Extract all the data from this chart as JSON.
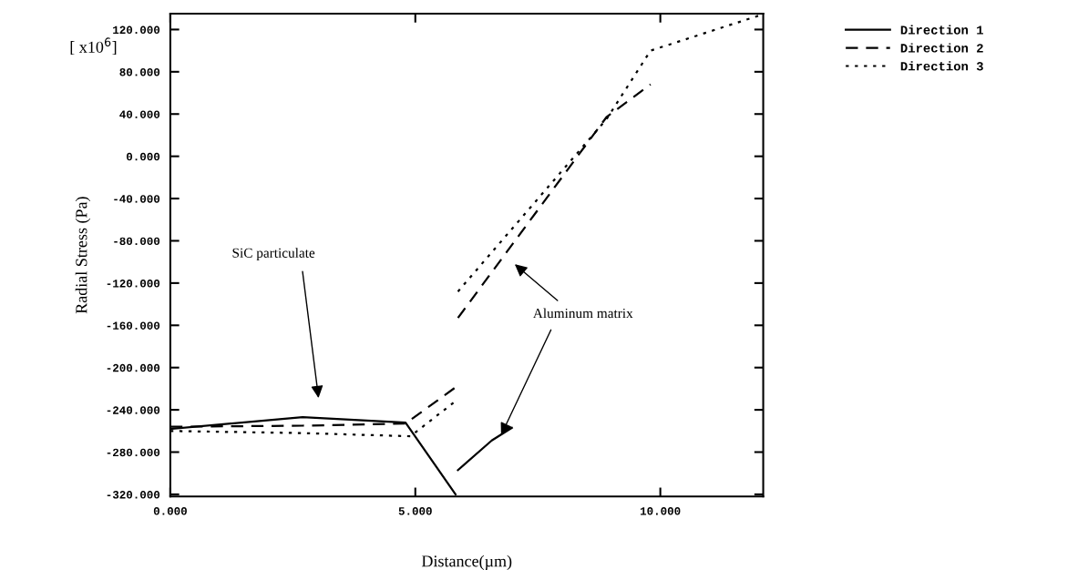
{
  "chart_data": {
    "type": "line",
    "xlabel": "Distance(µm)",
    "ylabel": "Radial Stress (Pa)",
    "xlim": [
      0,
      12.1
    ],
    "ylim": [
      -322,
      135
    ],
    "xticks": [
      {
        "value": 0,
        "label": "0.000"
      },
      {
        "value": 5,
        "label": "5.000"
      },
      {
        "value": 10,
        "label": "10.000"
      }
    ],
    "yticks": [
      {
        "value": 120,
        "label": "120.000"
      },
      {
        "value": 80,
        "label": "80.000"
      },
      {
        "value": 40,
        "label": "40.000"
      },
      {
        "value": 0,
        "label": "0.000"
      },
      {
        "value": -40,
        "label": "-40.000"
      },
      {
        "value": -80,
        "label": "-80.000"
      },
      {
        "value": -120,
        "label": "-120.000"
      },
      {
        "value": -160,
        "label": "-160.000"
      },
      {
        "value": -200,
        "label": "-200.000"
      },
      {
        "value": -240,
        "label": "-240.000"
      },
      {
        "value": -280,
        "label": "-280.000"
      },
      {
        "value": -320,
        "label": "-320.000"
      }
    ],
    "grid": false,
    "legend": "top right",
    "marker": "none",
    "series": [
      {
        "name": "Direction 1",
        "color": "#000000",
        "line_style": "solid",
        "x": [
          0,
          2.7,
          4.8,
          5.82,
          null,
          5.87,
          6.56,
          6.97
        ],
        "values": [
          -258,
          -247,
          -252,
          -320,
          null,
          -297,
          -269,
          -257
        ]
      },
      {
        "name": "Direction 2",
        "color": "#000000",
        "line_style": "dashed",
        "x": [
          0,
          2.7,
          4.8,
          5.87,
          null,
          5.87,
          8.9,
          9.8
        ],
        "values": [
          -256,
          -255,
          -253,
          -217,
          null,
          -153,
          37,
          68
        ]
      },
      {
        "name": "Direction 3",
        "color": "#000000",
        "line_style": "dotted",
        "x": [
          0,
          2.7,
          4.9,
          5.87,
          null,
          5.87,
          8.9,
          9.8,
          12.0
        ],
        "values": [
          -260,
          -262,
          -265,
          -230,
          null,
          -128,
          35,
          100,
          133
        ]
      }
    ],
    "annotations": [
      "[ x10$^{6}$]",
      "SiC particulate",
      {
        "text": "Aluminum matrix",
        "x": 6.75,
        "y": -264
      }
    ]
  }
}
